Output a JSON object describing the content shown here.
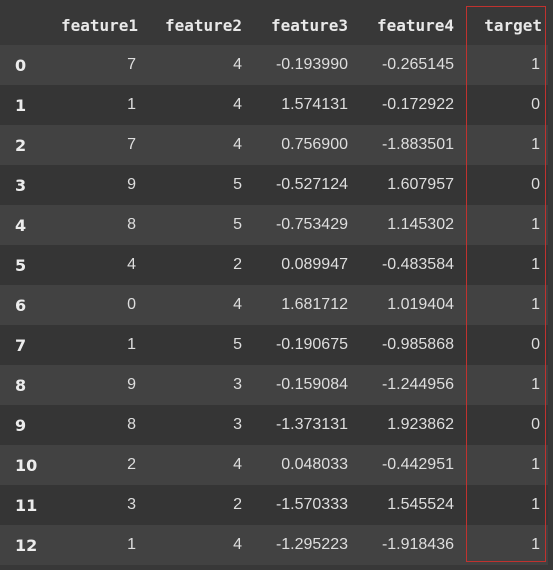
{
  "table": {
    "columns": [
      "",
      "feature1",
      "feature2",
      "feature3",
      "feature4",
      "target"
    ],
    "rows": [
      {
        "index": "0",
        "feature1": "7",
        "feature2": "4",
        "feature3": "-0.193990",
        "feature4": "-0.265145",
        "target": "1"
      },
      {
        "index": "1",
        "feature1": "1",
        "feature2": "4",
        "feature3": "1.574131",
        "feature4": "-0.172922",
        "target": "0"
      },
      {
        "index": "2",
        "feature1": "7",
        "feature2": "4",
        "feature3": "0.756900",
        "feature4": "-1.883501",
        "target": "1"
      },
      {
        "index": "3",
        "feature1": "9",
        "feature2": "5",
        "feature3": "-0.527124",
        "feature4": "1.607957",
        "target": "0"
      },
      {
        "index": "4",
        "feature1": "8",
        "feature2": "5",
        "feature3": "-0.753429",
        "feature4": "1.145302",
        "target": "1"
      },
      {
        "index": "5",
        "feature1": "4",
        "feature2": "2",
        "feature3": "0.089947",
        "feature4": "-0.483584",
        "target": "1"
      },
      {
        "index": "6",
        "feature1": "0",
        "feature2": "4",
        "feature3": "1.681712",
        "feature4": "1.019404",
        "target": "1"
      },
      {
        "index": "7",
        "feature1": "1",
        "feature2": "5",
        "feature3": "-0.190675",
        "feature4": "-0.985868",
        "target": "0"
      },
      {
        "index": "8",
        "feature1": "9",
        "feature2": "3",
        "feature3": "-0.159084",
        "feature4": "-1.244956",
        "target": "1"
      },
      {
        "index": "9",
        "feature1": "8",
        "feature2": "3",
        "feature3": "-1.373131",
        "feature4": "1.923862",
        "target": "0"
      },
      {
        "index": "10",
        "feature1": "2",
        "feature2": "4",
        "feature3": "0.048033",
        "feature4": "-0.442951",
        "target": "1"
      },
      {
        "index": "11",
        "feature1": "3",
        "feature2": "2",
        "feature3": "-1.570333",
        "feature4": "1.545524",
        "target": "1"
      },
      {
        "index": "12",
        "feature1": "1",
        "feature2": "4",
        "feature3": "-1.295223",
        "feature4": "-1.918436",
        "target": "1"
      }
    ]
  },
  "colors": {
    "background": "#383838",
    "row_odd": "#424242",
    "row_even": "#353535",
    "text": "#dedede",
    "highlight_border": "#c0322f"
  }
}
